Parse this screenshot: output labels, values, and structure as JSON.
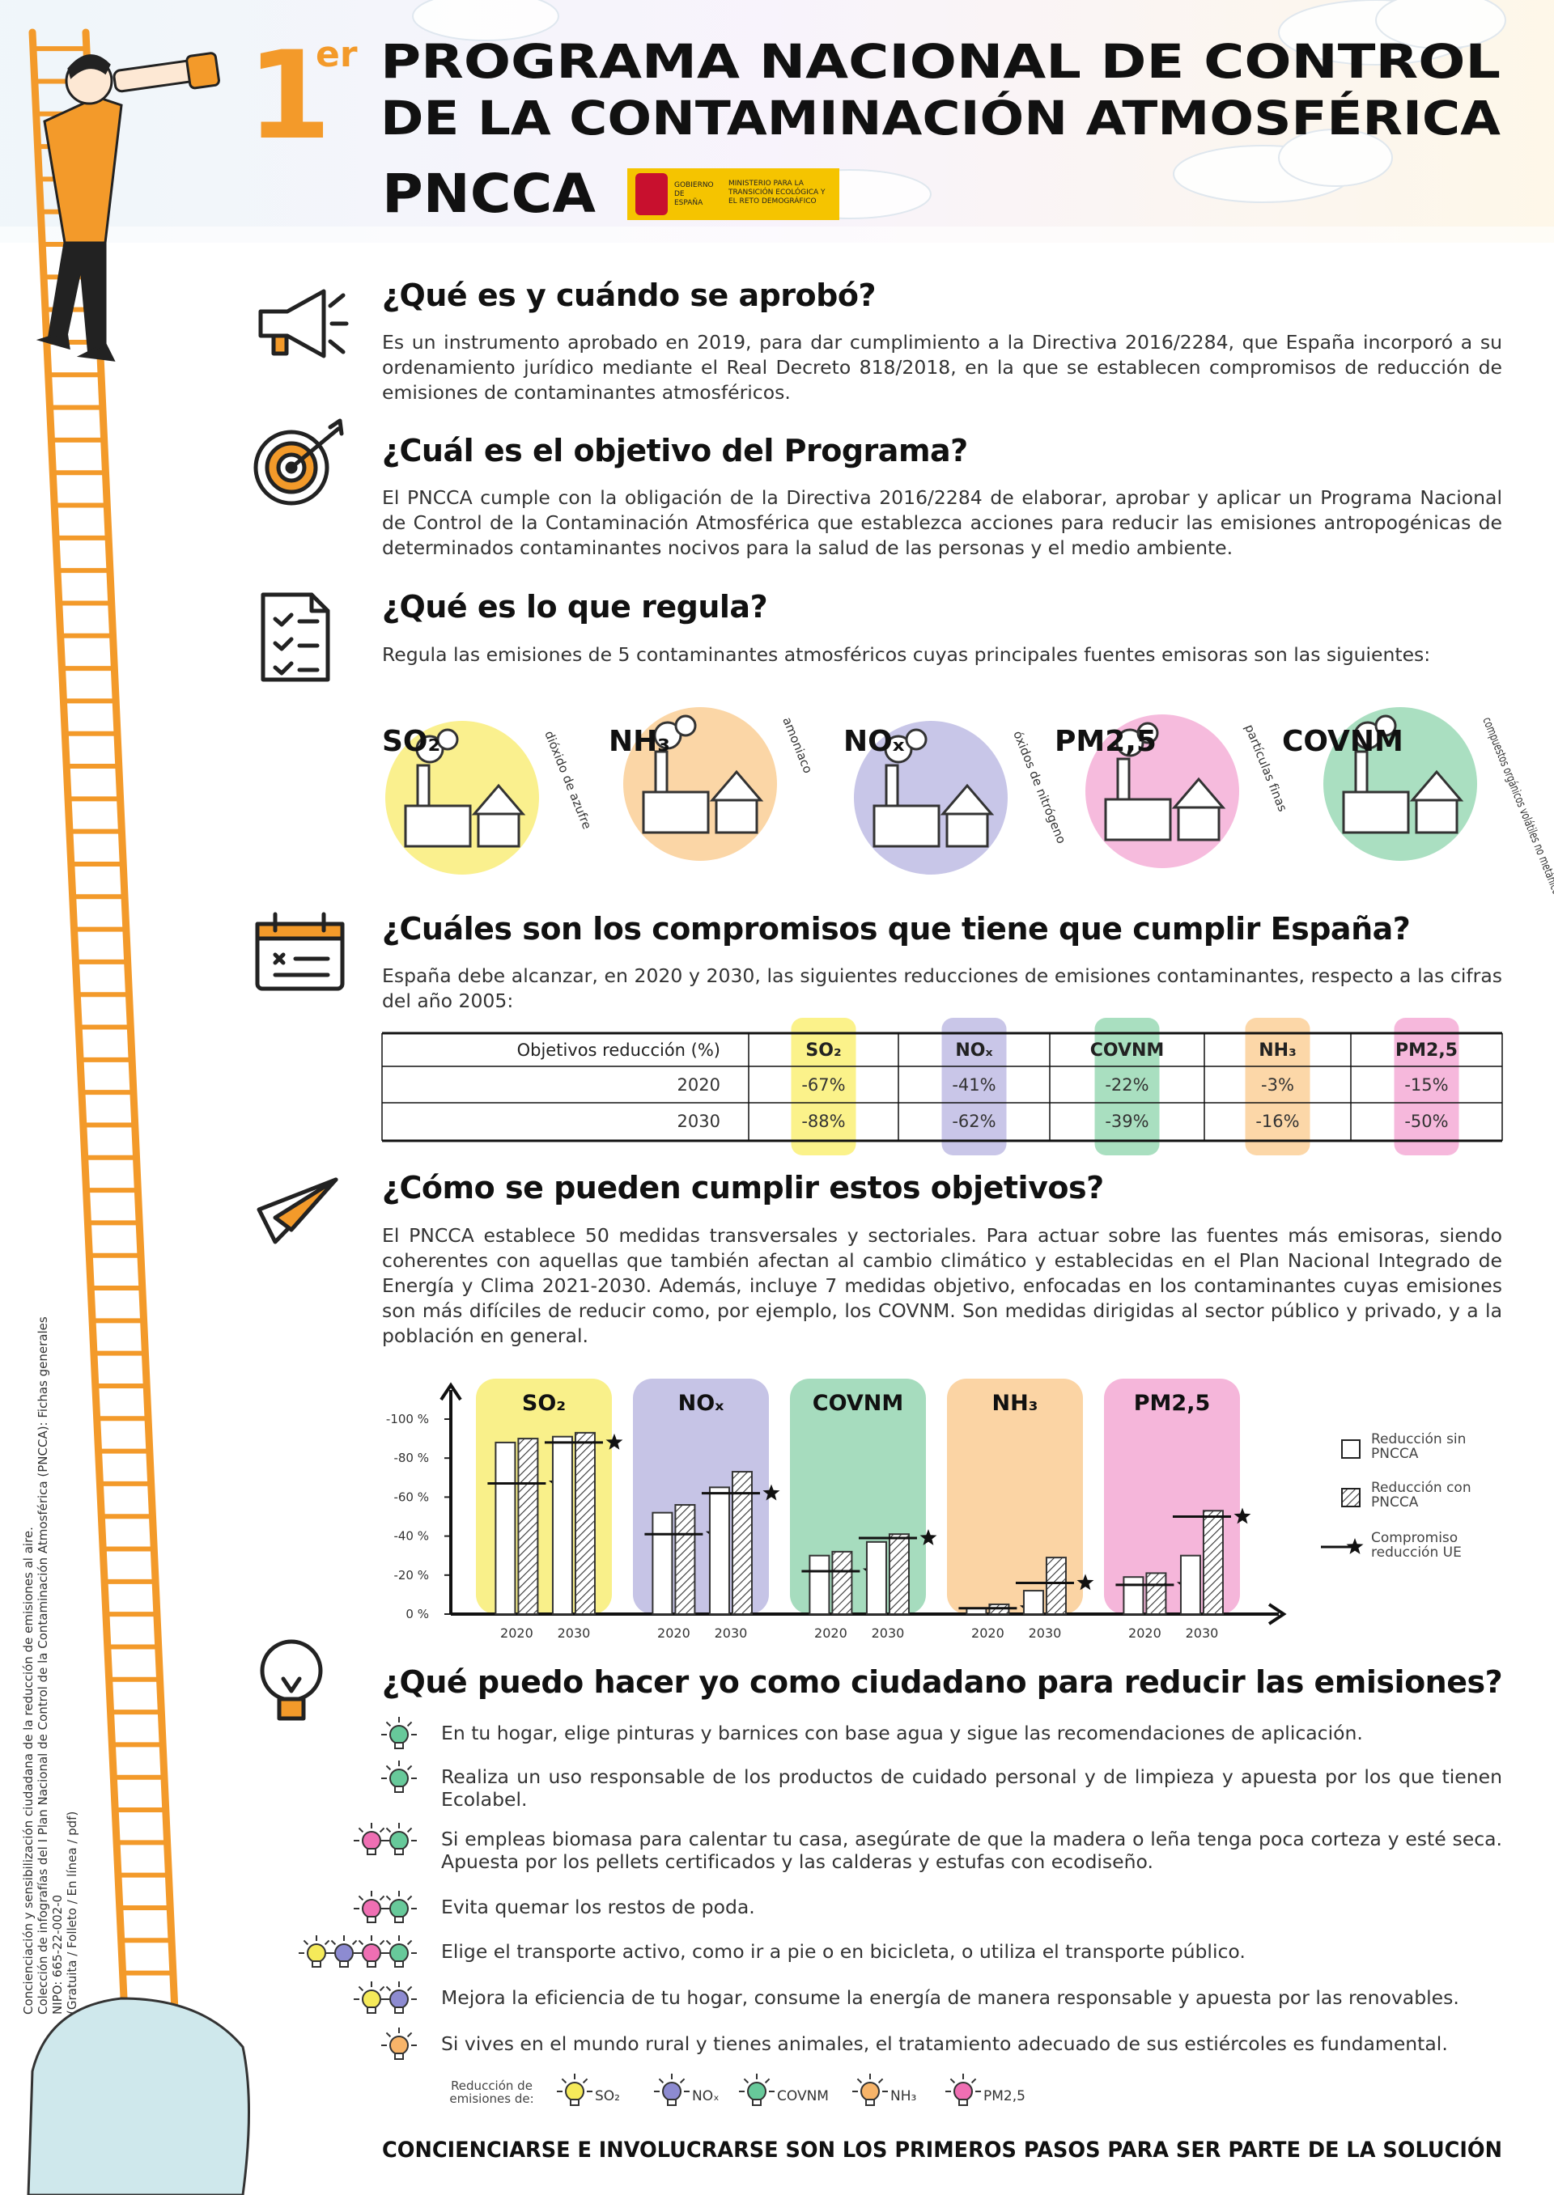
{
  "header": {
    "number": "1",
    "superscript": "er",
    "title_lines": [
      "PROGRAMA NACIONAL DE CONTROL",
      "DE LA CONTAMINACIÓN ATMOSFÉRICA"
    ],
    "logo": "PNCCA",
    "government": "GOBIERNO DE ESPAÑA",
    "ministry": "MINISTERIO PARA LA TRANSICIÓN ECOLÓGICA Y EL RETO DEMOGRÁFICO"
  },
  "sections": [
    {
      "heading": "¿Qué es y cuándo se aprobó?",
      "text": "Es un instrumento aprobado en 2019, para dar cumplimiento a la Directiva 2016/2284, que España incorporó a su ordenamiento jurídico mediante el Real Decreto 818/2018, en la que se establecen compromisos de reducción de emisiones de contaminantes atmosféricos."
    },
    {
      "heading": "¿Cuál es el objetivo del Programa?",
      "text": "El PNCCA cumple con la obligación de la Directiva 2016/2284 de elaborar, aprobar y aplicar un Programa Nacional de Control de la Contaminación Atmosférica que establezca acciones para reducir las emisiones antropogénicas de determinados contaminantes nocivos para la salud de las personas y el medio ambiente."
    },
    {
      "heading": "¿Qué es lo que regula?",
      "text": "Regula las emisiones de 5 contaminantes atmosféricos cuyas principales fuentes emisoras son las siguientes:"
    },
    {
      "heading": "¿Cuáles son los compromisos que tiene que cumplir España?",
      "text": "España debe alcanzar, en 2020 y 2030, las siguientes reducciones de emisiones contaminantes, respecto a las cifras del año 2005:"
    },
    {
      "heading": "¿Cómo se pueden cumplir estos objetivos?",
      "text": "El PNCCA establece 50 medidas transversales y sectoriales. Para actuar sobre las fuentes más emisoras, siendo coherentes con aquellas que también afectan al cambio climático y establecidas en el Plan Nacional Integrado de Energía y Clima 2021-2030. Además, incluye 7 medidas objetivo, enfocadas en los contaminantes cuyas emisiones son más difíciles de reducir como, por ejemplo, los COVNM. Son medidas dirigidas al sector público y privado, y a la población en general."
    }
  ],
  "pollutants": [
    {
      "name": "SO₂",
      "caption": "dióxido de azufre",
      "color": "#faf08e"
    },
    {
      "name": "NH₃",
      "caption": "amoniaco",
      "color": "#fbd6a6"
    },
    {
      "name": "NOₓ",
      "caption": "óxidos de nitrógeno",
      "color": "#c8c6e8"
    },
    {
      "name": "PM2,5",
      "caption": "partículas finas",
      "color": "#f6bbdd"
    },
    {
      "name": "COVNM",
      "caption": "compuestos orgánicos volátiles no metánicos",
      "color": "#aadfc1"
    }
  ],
  "table": {
    "header": [
      "Objetivos reducción (%)",
      "SO₂",
      "NOₓ",
      "COVNM",
      "NH₃",
      "PM2,5"
    ],
    "column_colors": [
      "#fbf28a",
      "#c9c6e8",
      "#a9dfc0",
      "#fcd7a8",
      "#f6b8dc"
    ],
    "rows": [
      [
        "2020",
        "-67%",
        "-41%",
        "-22%",
        "-3%",
        "-15%"
      ],
      [
        "2030",
        "-88%",
        "-62%",
        "-39%",
        "-16%",
        "-50%"
      ]
    ]
  },
  "chart_data": {
    "type": "bar",
    "groups": [
      {
        "name": "SO₂",
        "color": "#f9f08a"
      },
      {
        "name": "NOₓ",
        "color": "#c6c4e6"
      },
      {
        "name": "COVNM",
        "color": "#a6dcbe"
      },
      {
        "name": "NH₃",
        "color": "#fbd4a4"
      },
      {
        "name": "PM2,5",
        "color": "#f5b6da"
      }
    ],
    "categories": [
      "2020",
      "2030",
      "2020",
      "2030",
      "2020",
      "2030",
      "2020",
      "2030",
      "2020",
      "2030"
    ],
    "series": [
      {
        "name": "Reducción sin PNCCA",
        "color": "#ffffff",
        "values": [
          -88,
          -91,
          -52,
          -65,
          -30,
          -37,
          -3,
          -12,
          -19,
          -30
        ]
      },
      {
        "name": "Reducción con PNCCA",
        "color": "#333333",
        "values": [
          -90,
          -93,
          -56,
          -73,
          -32,
          -41,
          -5,
          -29,
          -21,
          -53
        ]
      },
      {
        "name": "Compromiso reducción UE",
        "color": "#111111",
        "values": [
          -67,
          -88,
          -41,
          -62,
          -22,
          -39,
          -3,
          -16,
          -15,
          -50
        ]
      }
    ],
    "ylim": [
      0,
      -100
    ],
    "yticks": [
      {
        "value": -100,
        "label": "-100 %"
      },
      {
        "value": -80,
        "label": "-80 %"
      },
      {
        "value": -60,
        "label": "-60 %"
      },
      {
        "value": -40,
        "label": "-40 %"
      },
      {
        "value": -20,
        "label": "-20 %"
      },
      {
        "value": 0,
        "label": "0 %"
      }
    ],
    "legend": "right"
  },
  "citizen": {
    "heading": "¿Qué puedo hacer yo como ciudadano para reducir las emisiones?",
    "items": [
      {
        "text": "En tu hogar, elige pinturas y barnices con base agua y sigue las recomendaciones de aplicación.",
        "bulbs": [
          "#67c99a"
        ]
      },
      {
        "text": "Realiza un uso responsable de los productos de cuidado personal y de limpieza y apuesta por los que tienen Ecolabel.",
        "bulbs": [
          "#67c99a"
        ]
      },
      {
        "text": "Si empleas biomasa para calentar tu casa, asegúrate de que la madera o leña tenga poca corteza y esté seca. Apuesta por los pellets certificados y las calderas y estufas con ecodiseño.",
        "bulbs": [
          "#ef6fb3",
          "#67c99a"
        ]
      },
      {
        "text": "Evita quemar los restos de poda.",
        "bulbs": [
          "#ef6fb3",
          "#67c99a"
        ]
      },
      {
        "text": "Elige el transporte activo, como ir a pie o en bicicleta, o utiliza el transporte público.",
        "bulbs": [
          "#f5ea5a",
          "#8d8bd1",
          "#ef6fb3",
          "#67c99a"
        ]
      },
      {
        "text": "Mejora la eficiencia de tu hogar, consume la energía de manera responsable y apuesta por las renovables.",
        "bulbs": [
          "#f5ea5a",
          "#8d8bd1"
        ]
      },
      {
        "text": "Si vives en el mundo rural y tienes animales, el tratamiento adecuado de sus estiércoles es fundamental.",
        "bulbs": [
          "#f7b469"
        ]
      }
    ]
  },
  "emission_key": {
    "label": "Reducción de emisiones de:",
    "items": [
      {
        "name": "SO₂",
        "color": "#f5ea5a"
      },
      {
        "name": "NOₓ",
        "color": "#8d8bd1"
      },
      {
        "name": "COVNM",
        "color": "#67c99a"
      },
      {
        "name": "NH₃",
        "color": "#f7b469"
      },
      {
        "name": "PM2,5",
        "color": "#ef6fb3"
      }
    ]
  },
  "slogan": "CONCIENCIARSE E INVOLUCRARSE SON LOS PRIMEROS PASOS PARA SER PARTE DE LA SOLUCIÓN",
  "side_note": [
    "Concienciación y sensibilización ciudadana de la reducción de emisiones al aire.",
    "Colección de infografías del I Plan Nacional de Control de la Contaminación Atmosférica (PNCCA): Fichas generales",
    "NIPO: 665-22-002-0",
    "(Gratuita / Folleto / En línea / pdf)"
  ]
}
